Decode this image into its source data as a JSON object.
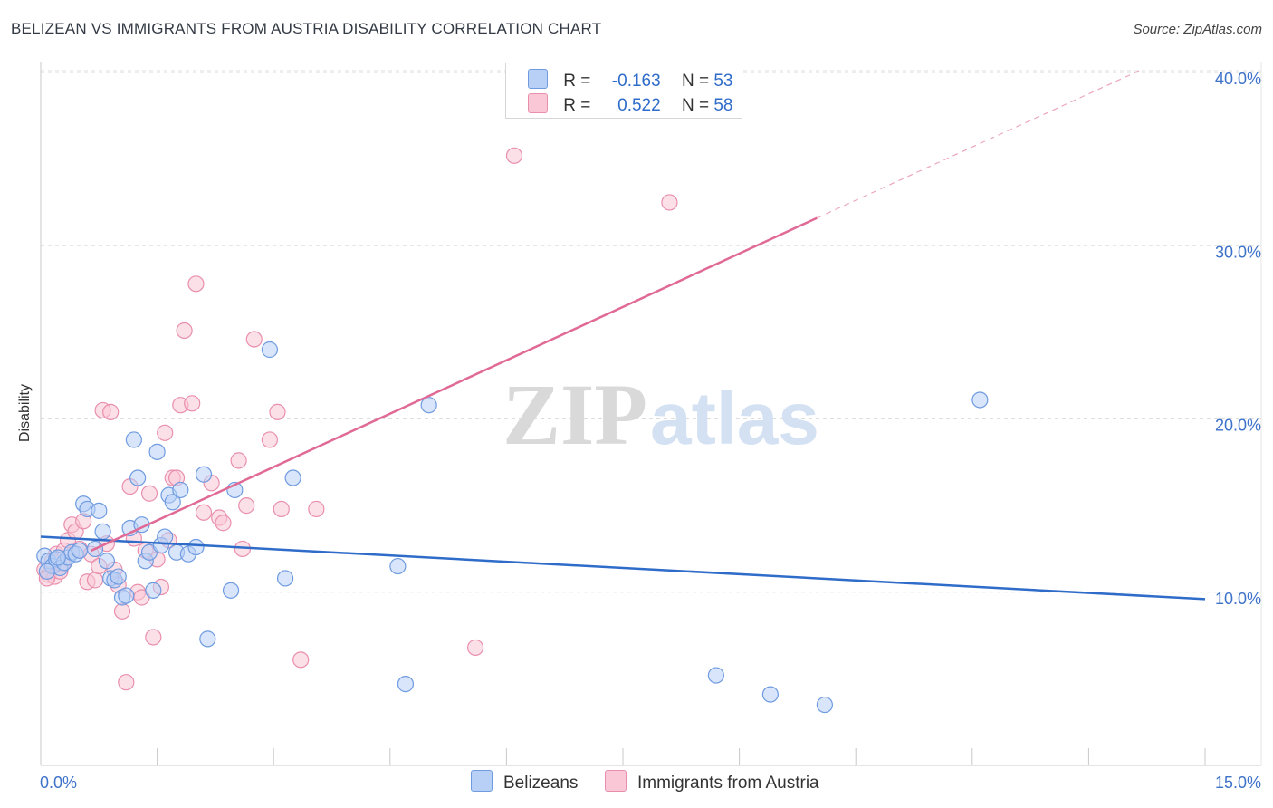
{
  "title": "BELIZEAN VS IMMIGRANTS FROM AUSTRIA DISABILITY CORRELATION CHART",
  "source": "Source: ZipAtlas.com",
  "colors": {
    "blue": "#2f6cc9",
    "blue_fill": "#b8d0f5",
    "pink": "#e06a95",
    "pink_fill": "#f9c7d6",
    "grid": "#dddddd",
    "tick_label": "#3d72c9"
  },
  "legend": {
    "rows": [
      {
        "r_label": "R =",
        "r_value": "-0.163",
        "n_label": "N =",
        "n_value": "53"
      },
      {
        "r_label": "R =",
        "r_value": "0.522",
        "n_label": "N =",
        "n_value": "58"
      }
    ]
  },
  "bottom_legend": {
    "series1": "Belizeans",
    "series2": "Immigrants from Austria"
  },
  "watermark": {
    "zip": "ZIP",
    "atlas": "atlas"
  },
  "chart_data": {
    "type": "scatter",
    "title": "BELIZEAN VS IMMIGRANTS FROM AUSTRIA DISABILITY CORRELATION CHART",
    "xlabel": "",
    "ylabel": "Disability",
    "xlim": [
      0,
      15
    ],
    "ylim": [
      0,
      40
    ],
    "x_tick_labels": [
      "0.0%",
      "15.0%"
    ],
    "y_ticks": [
      10,
      20,
      30,
      40
    ],
    "y_tick_labels": [
      "10.0%",
      "20.0%",
      "30.0%",
      "40.0%"
    ],
    "grid": true,
    "series": [
      {
        "name": "Belizeans",
        "color": "#2f6cc9",
        "trend": {
          "x0": 0,
          "y0": 13.2,
          "x1": 15,
          "y1": 9.6
        },
        "points": [
          [
            0.05,
            12.1
          ],
          [
            0.1,
            11.8
          ],
          [
            0.15,
            11.5
          ],
          [
            0.2,
            11.9
          ],
          [
            0.25,
            11.4
          ],
          [
            0.3,
            11.7
          ],
          [
            0.35,
            12.0
          ],
          [
            0.4,
            12.3
          ],
          [
            0.45,
            12.2
          ],
          [
            0.5,
            12.4
          ],
          [
            0.55,
            15.1
          ],
          [
            0.6,
            14.8
          ],
          [
            0.7,
            12.5
          ],
          [
            0.75,
            14.7
          ],
          [
            0.8,
            13.5
          ],
          [
            0.85,
            11.8
          ],
          [
            0.9,
            10.8
          ],
          [
            0.95,
            10.7
          ],
          [
            1.0,
            10.9
          ],
          [
            1.05,
            9.7
          ],
          [
            1.1,
            9.8
          ],
          [
            1.15,
            13.7
          ],
          [
            1.2,
            18.8
          ],
          [
            1.25,
            16.6
          ],
          [
            1.3,
            13.9
          ],
          [
            1.35,
            11.8
          ],
          [
            1.4,
            12.3
          ],
          [
            1.45,
            10.1
          ],
          [
            1.5,
            18.1
          ],
          [
            1.55,
            12.7
          ],
          [
            1.6,
            13.2
          ],
          [
            1.65,
            15.6
          ],
          [
            1.7,
            15.2
          ],
          [
            1.75,
            12.3
          ],
          [
            1.8,
            15.9
          ],
          [
            1.9,
            12.2
          ],
          [
            2.0,
            12.6
          ],
          [
            2.1,
            16.8
          ],
          [
            2.15,
            7.3
          ],
          [
            2.45,
            10.1
          ],
          [
            2.5,
            15.9
          ],
          [
            2.95,
            24.0
          ],
          [
            3.15,
            10.8
          ],
          [
            3.25,
            16.6
          ],
          [
            4.6,
            11.5
          ],
          [
            4.7,
            4.7
          ],
          [
            5.0,
            20.8
          ],
          [
            12.1,
            21.1
          ],
          [
            8.7,
            5.2
          ],
          [
            9.4,
            4.1
          ],
          [
            10.1,
            3.5
          ],
          [
            0.08,
            11.2
          ],
          [
            0.22,
            12.0
          ]
        ]
      },
      {
        "name": "Immigrants from Austria",
        "color": "#e06a95",
        "trend": {
          "x0": 0.65,
          "y0": 12.4,
          "x1": 10.0,
          "y1": 31.6,
          "dash_x1": 14.2,
          "dash_y1": 40.2
        },
        "points": [
          [
            0.05,
            11.3
          ],
          [
            0.1,
            11.0
          ],
          [
            0.15,
            11.8
          ],
          [
            0.18,
            10.9
          ],
          [
            0.2,
            12.2
          ],
          [
            0.25,
            11.2
          ],
          [
            0.3,
            12.4
          ],
          [
            0.35,
            13.0
          ],
          [
            0.4,
            13.9
          ],
          [
            0.45,
            13.5
          ],
          [
            0.5,
            12.5
          ],
          [
            0.55,
            14.1
          ],
          [
            0.6,
            10.6
          ],
          [
            0.65,
            12.2
          ],
          [
            0.7,
            10.7
          ],
          [
            0.75,
            11.5
          ],
          [
            0.8,
            20.5
          ],
          [
            0.85,
            12.8
          ],
          [
            0.9,
            20.4
          ],
          [
            0.95,
            11.3
          ],
          [
            1.0,
            10.4
          ],
          [
            1.05,
            8.9
          ],
          [
            1.1,
            4.8
          ],
          [
            1.15,
            16.1
          ],
          [
            1.2,
            13.1
          ],
          [
            1.25,
            10.0
          ],
          [
            1.3,
            9.7
          ],
          [
            1.35,
            12.4
          ],
          [
            1.4,
            15.7
          ],
          [
            1.45,
            7.4
          ],
          [
            1.5,
            11.9
          ],
          [
            1.55,
            10.3
          ],
          [
            1.6,
            19.2
          ],
          [
            1.65,
            13.0
          ],
          [
            1.7,
            16.6
          ],
          [
            1.75,
            16.6
          ],
          [
            1.8,
            20.8
          ],
          [
            1.85,
            25.1
          ],
          [
            1.95,
            20.9
          ],
          [
            2.0,
            27.8
          ],
          [
            2.1,
            14.6
          ],
          [
            2.2,
            16.3
          ],
          [
            2.3,
            14.3
          ],
          [
            2.35,
            14.0
          ],
          [
            2.55,
            17.6
          ],
          [
            2.6,
            12.5
          ],
          [
            2.65,
            15.0
          ],
          [
            2.75,
            24.6
          ],
          [
            2.95,
            18.8
          ],
          [
            3.05,
            20.4
          ],
          [
            3.1,
            14.8
          ],
          [
            3.35,
            6.1
          ],
          [
            3.55,
            14.8
          ],
          [
            5.6,
            6.8
          ],
          [
            6.1,
            35.2
          ],
          [
            8.1,
            32.5
          ],
          [
            0.08,
            10.8
          ],
          [
            0.28,
            11.6
          ]
        ]
      }
    ]
  }
}
